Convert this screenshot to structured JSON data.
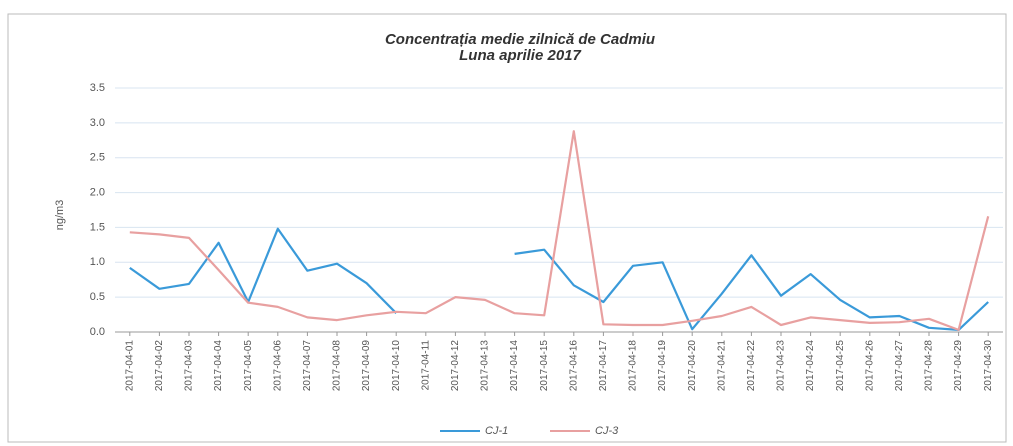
{
  "chart_data": {
    "type": "line",
    "title": "Concentrația medie zilnică de Cadmiu",
    "subtitle": "Luna aprilie 2017",
    "y_label": "ng/m3",
    "categories": [
      "2017-04-01",
      "2017-04-02",
      "2017-04-03",
      "2017-04-04",
      "2017-04-05",
      "2017-04-06",
      "2017-04-07",
      "2017-04-08",
      "2017-04-09",
      "2017-04-10",
      "2017-04-11",
      "2017-04-12",
      "2017-04-13",
      "2017-04-14",
      "2017-04-15",
      "2017-04-16",
      "2017-04-17",
      "2017-04-18",
      "2017-04-19",
      "2017-04-20",
      "2017-04-21",
      "2017-04-22",
      "2017-04-23",
      "2017-04-24",
      "2017-04-25",
      "2017-04-26",
      "2017-04-27",
      "2017-04-28",
      "2017-04-29",
      "2017-04-30"
    ],
    "series": [
      {
        "name": "CJ-1",
        "color": "#3a9ad9",
        "values": [
          0.92,
          0.62,
          0.69,
          1.28,
          0.43,
          1.48,
          0.88,
          0.98,
          0.7,
          0.27,
          null,
          null,
          null,
          1.12,
          1.18,
          0.67,
          0.43,
          0.95,
          1.0,
          0.04,
          0.55,
          1.1,
          0.52,
          0.83,
          0.46,
          0.21,
          0.23,
          0.06,
          0.03,
          0.43
        ]
      },
      {
        "name": "CJ-3",
        "color": "#e8a0a0",
        "values": [
          1.43,
          1.4,
          1.35,
          0.89,
          0.42,
          0.36,
          0.21,
          0.17,
          0.24,
          0.29,
          0.27,
          0.5,
          0.46,
          0.27,
          0.24,
          2.88,
          0.11,
          0.1,
          0.1,
          0.16,
          0.23,
          0.36,
          0.1,
          0.21,
          0.17,
          0.13,
          0.14,
          0.19,
          0.03,
          1.66
        ]
      }
    ],
    "ylim": [
      0,
      3.5
    ],
    "yticks": [
      {
        "value": 0,
        "label": "0.0"
      },
      {
        "value": 0.5,
        "label": "0.5"
      },
      {
        "value": 1,
        "label": "1.0"
      },
      {
        "value": 1.5,
        "label": "1.5"
      },
      {
        "value": 2,
        "label": "2.0"
      },
      {
        "value": 2.5,
        "label": "2.5"
      },
      {
        "value": 3,
        "label": "3.0"
      },
      {
        "value": 3.5,
        "label": "3.5"
      }
    ],
    "grid": true,
    "legend": "bottom"
  }
}
